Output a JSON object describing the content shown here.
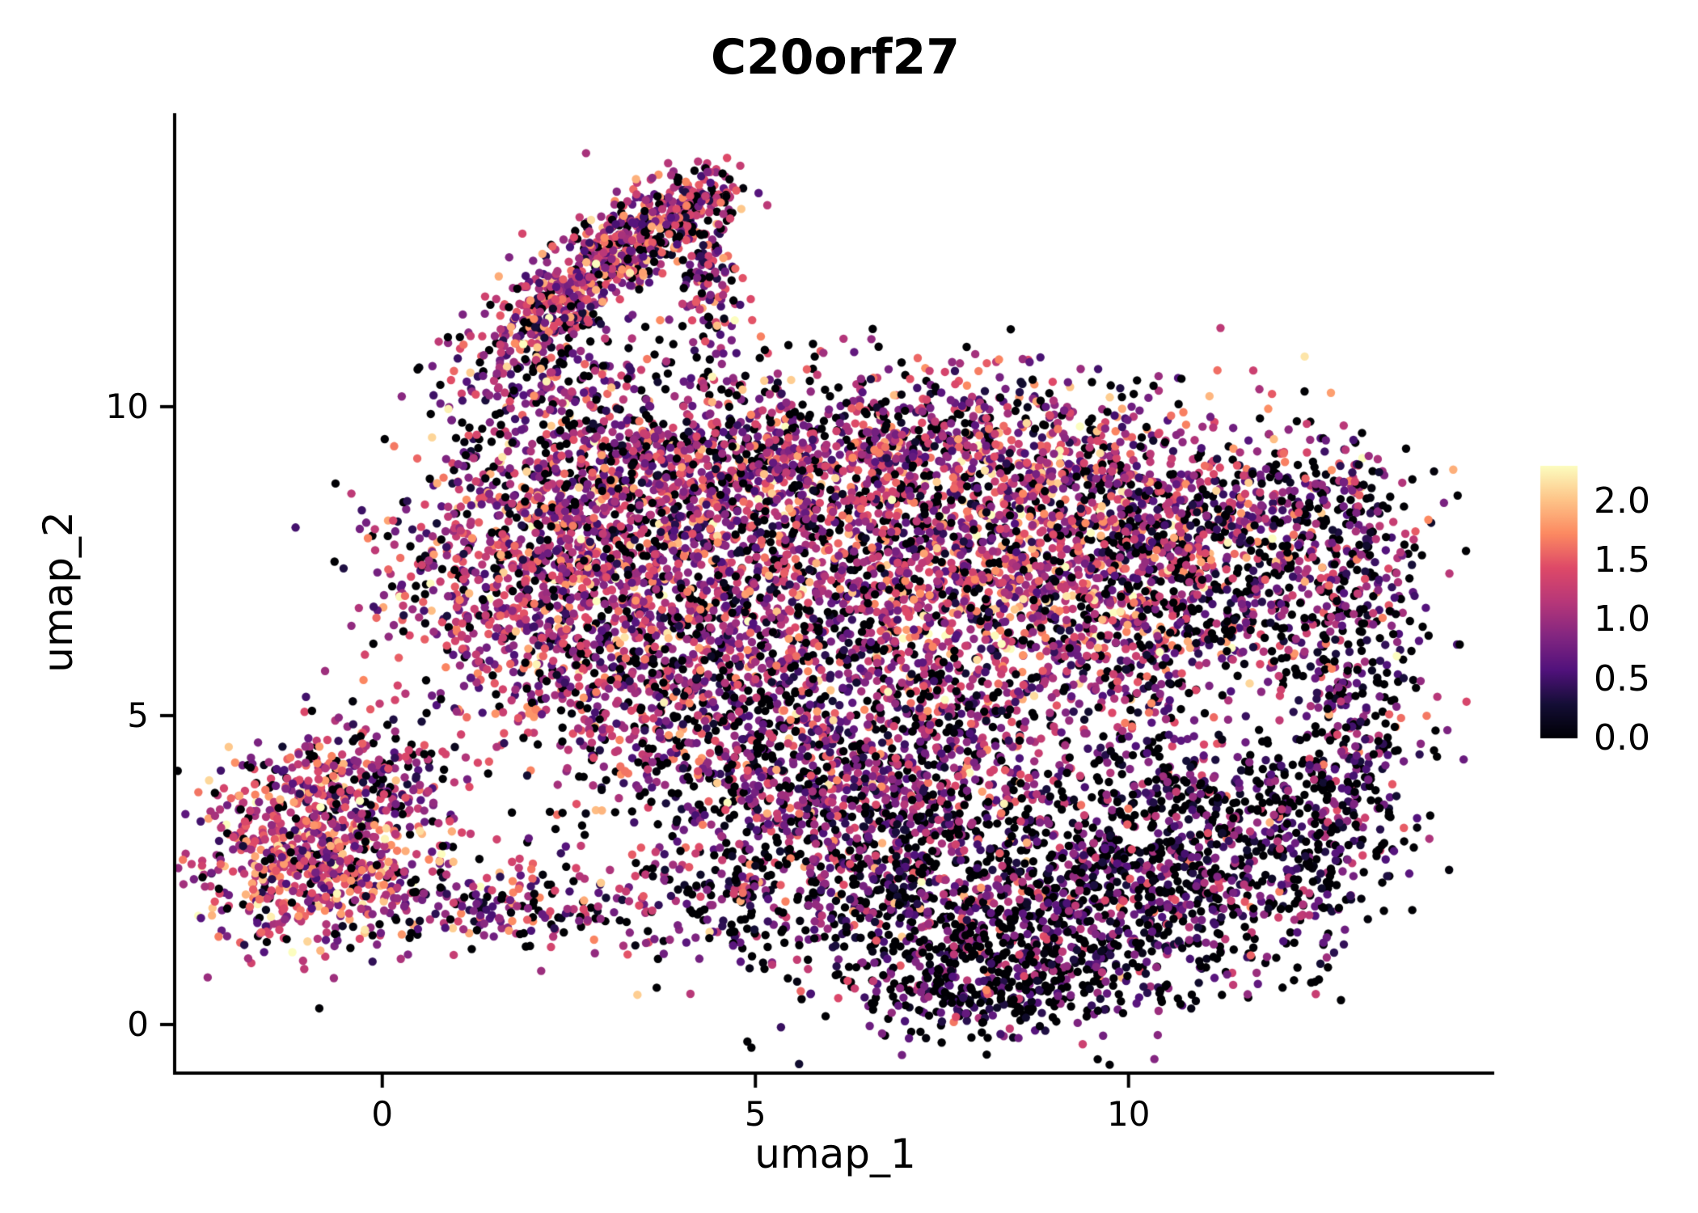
{
  "title": "C20orf27",
  "axes": {
    "x_label": "umap_1",
    "y_label": "umap_2",
    "x_tick_labels": [
      "0",
      "5",
      "10"
    ],
    "y_tick_labels": [
      "0",
      "5",
      "10"
    ]
  },
  "legend": {
    "tick_labels": [
      "2.0",
      "1.5",
      "1.0",
      "0.5",
      "0.0"
    ]
  },
  "chart_data": {
    "type": "scatter",
    "title": "C20orf27",
    "xlabel": "umap_1",
    "ylabel": "umap_2",
    "xlim": [
      -2.76,
      14.9
    ],
    "ylim": [
      -0.76,
      14.75
    ],
    "x_ticks": [
      0,
      5,
      10
    ],
    "y_ticks": [
      0,
      5,
      10
    ],
    "grid": false,
    "legend_position": "right",
    "color_scale": {
      "name": "magma",
      "domain": [
        0,
        2.3
      ],
      "legend_ticks": [
        2.0,
        1.5,
        1.0,
        0.5,
        0.0
      ],
      "stops": [
        [
          0,
          "#000004"
        ],
        [
          0.125,
          "#140e36"
        ],
        [
          0.25,
          "#51127c"
        ],
        [
          0.375,
          "#832681"
        ],
        [
          0.5,
          "#b73779"
        ],
        [
          0.625,
          "#de4968"
        ],
        [
          0.75,
          "#fc8961"
        ],
        [
          0.875,
          "#fec488"
        ],
        [
          1,
          "#fcfdbf"
        ]
      ]
    },
    "point_radius_px": 5.2,
    "n_points_approx": 12400,
    "clusters": [
      {
        "name": "top-arm-lower",
        "cx": 2.55,
        "cy": 11.9,
        "sx": 0.95,
        "sy": 0.32,
        "rot": 47,
        "n": 430,
        "p0": 0.16,
        "mean": 1.1,
        "sd": 0.5
      },
      {
        "name": "top-arm-upper",
        "cx": 3.55,
        "cy": 12.85,
        "sx": 0.6,
        "sy": 0.28,
        "rot": 40,
        "n": 240,
        "p0": 0.16,
        "mean": 1.15,
        "sd": 0.5
      },
      {
        "name": "top-arm-tip",
        "cx": 4.25,
        "cy": 13.25,
        "sx": 0.32,
        "sy": 0.26,
        "rot": 0,
        "n": 90,
        "p0": 0.2,
        "mean": 1.0,
        "sd": 0.5
      },
      {
        "name": "top-arm-spur",
        "cx": 4.35,
        "cy": 12.0,
        "sx": 0.22,
        "sy": 0.55,
        "rot": 0,
        "n": 110,
        "p0": 0.25,
        "mean": 0.9,
        "sd": 0.5
      },
      {
        "name": "top-arm-base",
        "cx": 2.3,
        "cy": 10.6,
        "sx": 0.55,
        "sy": 0.5,
        "rot": 0,
        "n": 150,
        "p0": 0.22,
        "mean": 1.0,
        "sd": 0.5
      },
      {
        "name": "arm-main-bridge",
        "cx": 3.7,
        "cy": 10.1,
        "sx": 0.95,
        "sy": 0.55,
        "rot": 0,
        "n": 90,
        "p0": 0.3,
        "mean": 0.85,
        "sd": 0.5
      },
      {
        "name": "left-island-core",
        "cx": -1.0,
        "cy": 2.7,
        "sx": 0.8,
        "sy": 0.75,
        "rot": 0,
        "n": 680,
        "p0": 0.1,
        "mean": 1.25,
        "sd": 0.5
      },
      {
        "name": "left-island-top",
        "cx": -0.3,
        "cy": 4.05,
        "sx": 0.75,
        "sy": 0.45,
        "rot": 0,
        "n": 220,
        "p0": 0.25,
        "mean": 0.95,
        "sd": 0.5
      },
      {
        "name": "left-island-tail",
        "cx": 0.9,
        "cy": 2.1,
        "sx": 0.7,
        "sy": 0.38,
        "rot": 0,
        "n": 140,
        "p0": 0.2,
        "mean": 1.0,
        "sd": 0.5
      },
      {
        "name": "left-bridge",
        "cx": 2.3,
        "cy": 1.9,
        "sx": 0.95,
        "sy": 0.4,
        "rot": 0,
        "n": 110,
        "p0": 0.3,
        "mean": 0.8,
        "sd": 0.5
      },
      {
        "name": "main-upper-left",
        "cx": 1.9,
        "cy": 7.4,
        "sx": 1.0,
        "sy": 1.3,
        "rot": 0,
        "n": 750,
        "p0": 0.15,
        "mean": 1.15,
        "sd": 0.5
      },
      {
        "name": "main-upper-left2",
        "cx": 3.3,
        "cy": 8.6,
        "sx": 1.05,
        "sy": 0.8,
        "rot": 0,
        "n": 620,
        "p0": 0.18,
        "mean": 1.05,
        "sd": 0.5
      },
      {
        "name": "main-top-band",
        "cx": 5.8,
        "cy": 9.2,
        "sx": 1.6,
        "sy": 0.7,
        "rot": 0,
        "n": 700,
        "p0": 0.22,
        "mean": 1.0,
        "sd": 0.5
      },
      {
        "name": "main-top-right",
        "cx": 8.6,
        "cy": 9.0,
        "sx": 1.5,
        "sy": 0.75,
        "rot": 0,
        "n": 680,
        "p0": 0.18,
        "mean": 1.1,
        "sd": 0.5
      },
      {
        "name": "main-center-left",
        "cx": 3.6,
        "cy": 6.3,
        "sx": 1.2,
        "sy": 1.0,
        "rot": 0,
        "n": 700,
        "p0": 0.2,
        "mean": 1.0,
        "sd": 0.5
      },
      {
        "name": "main-center",
        "cx": 6.2,
        "cy": 7.3,
        "sx": 1.35,
        "sy": 1.05,
        "rot": 0,
        "n": 820,
        "p0": 0.18,
        "mean": 1.05,
        "sd": 0.52
      },
      {
        "name": "main-center-right",
        "cx": 8.8,
        "cy": 7.2,
        "sx": 1.25,
        "sy": 1.0,
        "rot": 0,
        "n": 800,
        "p0": 0.14,
        "mean": 1.2,
        "sd": 0.5
      },
      {
        "name": "main-right-upper",
        "cx": 10.8,
        "cy": 7.6,
        "sx": 1.0,
        "sy": 1.05,
        "rot": 0,
        "n": 520,
        "p0": 0.28,
        "mean": 0.95,
        "sd": 0.55
      },
      {
        "name": "main-far-right-top",
        "cx": 12.3,
        "cy": 8.3,
        "sx": 0.8,
        "sy": 0.7,
        "rot": 0,
        "n": 300,
        "p0": 0.3,
        "mean": 0.95,
        "sd": 0.6
      },
      {
        "name": "main-right-edge",
        "cx": 13.05,
        "cy": 6.2,
        "sx": 0.5,
        "sy": 1.2,
        "rot": 0,
        "n": 280,
        "p0": 0.35,
        "mean": 0.8,
        "sd": 0.55
      },
      {
        "name": "right-ring",
        "shape": "ring",
        "cx": 11.6,
        "cy": 4.9,
        "r": 1.55,
        "rs": 0.33,
        "n": 330,
        "p0": 0.4,
        "mean": 0.65,
        "sd": 0.45
      },
      {
        "name": "right-lower",
        "cx": 12.4,
        "cy": 3.1,
        "sx": 0.75,
        "sy": 0.9,
        "rot": 0,
        "n": 360,
        "p0": 0.45,
        "mean": 0.6,
        "sd": 0.45
      },
      {
        "name": "main-mid-low-left",
        "cx": 5.0,
        "cy": 4.6,
        "sx": 1.4,
        "sy": 0.95,
        "rot": 0,
        "n": 620,
        "p0": 0.25,
        "mean": 0.9,
        "sd": 0.5
      },
      {
        "name": "main-mid-low-right",
        "cx": 7.6,
        "cy": 4.9,
        "sx": 1.35,
        "sy": 0.95,
        "rot": 0,
        "n": 560,
        "p0": 0.22,
        "mean": 0.95,
        "sd": 0.5
      },
      {
        "name": "main-low-center",
        "cx": 6.6,
        "cy": 3.3,
        "sx": 1.25,
        "sy": 0.7,
        "rot": 0,
        "n": 460,
        "p0": 0.3,
        "mean": 0.85,
        "sd": 0.5
      },
      {
        "name": "bottom-dense",
        "cx": 8.6,
        "cy": 1.6,
        "sx": 1.5,
        "sy": 0.85,
        "rot": 0,
        "n": 900,
        "p0": 0.42,
        "mean": 0.6,
        "sd": 0.45
      },
      {
        "name": "bottom-right",
        "cx": 10.3,
        "cy": 2.6,
        "sx": 1.05,
        "sy": 0.85,
        "rot": 0,
        "n": 520,
        "p0": 0.4,
        "mean": 0.65,
        "sd": 0.5
      },
      {
        "name": "bottom-tail-left",
        "cx": 5.3,
        "cy": 2.0,
        "sx": 1.2,
        "sy": 0.5,
        "rot": 0,
        "n": 280,
        "p0": 0.3,
        "mean": 0.8,
        "sd": 0.5
      },
      {
        "name": "bottom-tip",
        "cx": 8.0,
        "cy": 0.6,
        "sx": 0.95,
        "sy": 0.35,
        "rot": 0,
        "n": 200,
        "p0": 0.45,
        "mean": 0.55,
        "sd": 0.4
      }
    ]
  }
}
